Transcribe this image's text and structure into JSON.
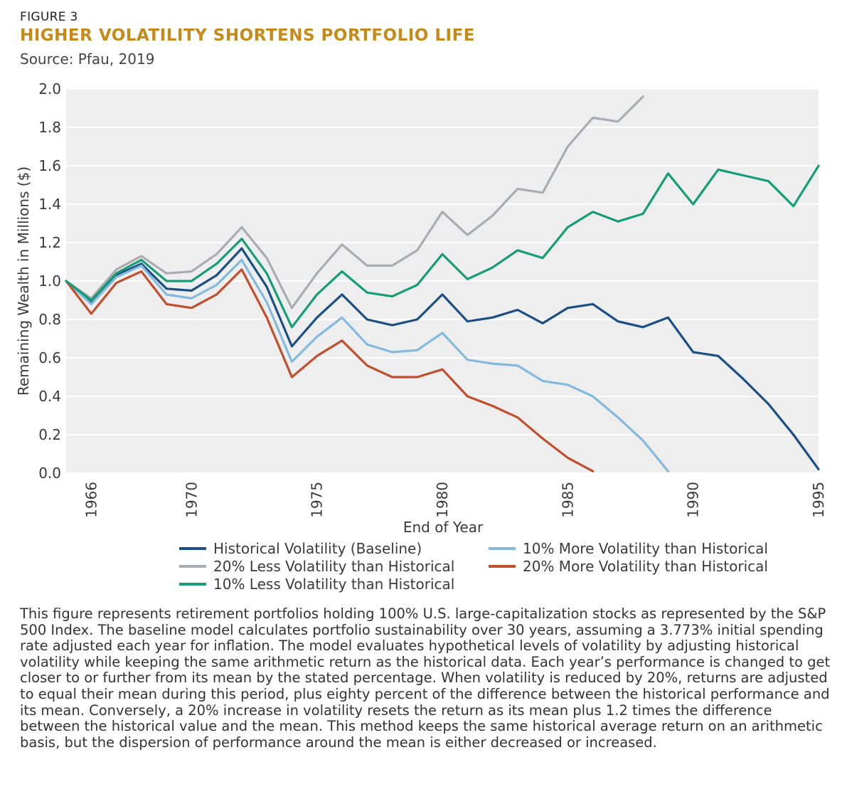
{
  "figure_label": "FIGURE 3",
  "title": "HIGHER VOLATILITY SHORTENS PORTFOLIO LIFE",
  "source": "Source: Pfau, 2019",
  "chart_data": {
    "type": "line",
    "xlabel": "End of Year",
    "ylabel": "Remaining Wealth in Millions ($)",
    "xlim": [
      1965,
      1995
    ],
    "ylim": [
      0,
      2.0
    ],
    "y_ticks": [
      "0.0",
      "0.2",
      "0.4",
      "0.6",
      "0.8",
      "1.0",
      "1.2",
      "1.4",
      "1.6",
      "1.8",
      "2.0"
    ],
    "x_ticks": [
      "1966",
      "1970",
      "1975",
      "1980",
      "1985",
      "1990",
      "1995"
    ],
    "legend_position": "bottom",
    "grid": true,
    "background_color": "#eeeeee",
    "series": [
      {
        "name": "Historical Volatility (Baseline)",
        "color": "#1a4f86",
        "x": [
          1965,
          1966,
          1967,
          1968,
          1969,
          1970,
          1971,
          1972,
          1973,
          1974,
          1975,
          1976,
          1977,
          1978,
          1979,
          1980,
          1981,
          1982,
          1983,
          1984,
          1985,
          1986,
          1987,
          1988,
          1989,
          1990,
          1991,
          1992,
          1993,
          1994,
          1995
        ],
        "values": [
          1.0,
          0.89,
          1.03,
          1.09,
          0.96,
          0.95,
          1.03,
          1.17,
          0.97,
          0.66,
          0.81,
          0.93,
          0.8,
          0.77,
          0.8,
          0.93,
          0.79,
          0.81,
          0.85,
          0.78,
          0.86,
          0.88,
          0.79,
          0.76,
          0.81,
          0.63,
          0.61,
          0.49,
          0.36,
          0.2,
          0.02
        ]
      },
      {
        "name": "10% More Volatility than Historical",
        "color": "#83b9dd",
        "x": [
          1965,
          1966,
          1967,
          1968,
          1969,
          1970,
          1971,
          1972,
          1973,
          1974,
          1975,
          1976,
          1977,
          1978,
          1979,
          1980,
          1981,
          1982,
          1983,
          1984,
          1985,
          1986,
          1987,
          1988,
          1989
        ],
        "values": [
          1.0,
          0.88,
          1.02,
          1.08,
          0.93,
          0.91,
          0.98,
          1.11,
          0.89,
          0.58,
          0.71,
          0.81,
          0.67,
          0.63,
          0.64,
          0.73,
          0.59,
          0.57,
          0.56,
          0.48,
          0.46,
          0.4,
          0.29,
          0.17,
          0.01
        ]
      },
      {
        "name": "20% Less Volatility than Historical",
        "color": "#a9acb0",
        "x": [
          1965,
          1966,
          1967,
          1968,
          1969,
          1970,
          1971,
          1972,
          1973,
          1974,
          1975,
          1976,
          1977,
          1978,
          1979,
          1980,
          1981,
          1982,
          1983,
          1984,
          1985,
          1986,
          1987,
          1988
        ],
        "values": [
          1.0,
          0.91,
          1.06,
          1.13,
          1.04,
          1.05,
          1.14,
          1.28,
          1.12,
          0.86,
          1.04,
          1.19,
          1.08,
          1.08,
          1.16,
          1.36,
          1.24,
          1.34,
          1.48,
          1.46,
          1.7,
          1.85,
          1.83,
          1.96
        ]
      },
      {
        "name": "20% More Volatility than Historical",
        "color": "#c14f2e",
        "x": [
          1965,
          1966,
          1967,
          1968,
          1969,
          1970,
          1971,
          1972,
          1973,
          1974,
          1975,
          1976,
          1977,
          1978,
          1979,
          1980,
          1981,
          1982,
          1983,
          1984,
          1985,
          1986
        ],
        "values": [
          1.0,
          0.83,
          0.99,
          1.05,
          0.88,
          0.86,
          0.93,
          1.06,
          0.81,
          0.5,
          0.61,
          0.69,
          0.56,
          0.5,
          0.5,
          0.54,
          0.4,
          0.35,
          0.29,
          0.18,
          0.08,
          0.01
        ]
      },
      {
        "name": "10% Less Volatility than Historical",
        "color": "#159d76",
        "x": [
          1965,
          1966,
          1967,
          1968,
          1969,
          1970,
          1971,
          1972,
          1973,
          1974,
          1975,
          1976,
          1977,
          1978,
          1979,
          1980,
          1981,
          1982,
          1983,
          1984,
          1985,
          1986,
          1987,
          1988,
          1989,
          1990,
          1991,
          1992,
          1993,
          1994,
          1995
        ],
        "values": [
          1.0,
          0.9,
          1.04,
          1.11,
          1.0,
          1.0,
          1.09,
          1.22,
          1.04,
          0.76,
          0.93,
          1.05,
          0.94,
          0.92,
          0.98,
          1.14,
          1.01,
          1.07,
          1.16,
          1.12,
          1.28,
          1.36,
          1.31,
          1.35,
          1.56,
          1.4,
          1.58,
          1.55,
          1.52,
          1.39,
          1.6
        ]
      }
    ]
  },
  "note": "This figure represents retirement portfolios holding 100% U.S. large-capitalization stocks as represented by the S&P 500 Index. The baseline model calculates portfolio sustainability over 30 years, assuming a 3.773% initial spending rate adjusted each year for inflation. The model evaluates hypothetical levels of volatility by adjusting historical volatility while keeping the same arithmetic return as the historical data. Each year’s performance is changed to get closer to or further from its mean by the stated percentage. When volatility is reduced by 20%, returns are adjusted to equal their mean during this period, plus eighty percent of the difference between the historical performance and its mean. Conversely, a 20% increase in volatility resets the return as its mean plus 1.2 times the difference between the historical value and the mean. This method keeps the same historical average return on an arithmetic basis, but the dispersion of performance around the mean is either decreased or increased."
}
